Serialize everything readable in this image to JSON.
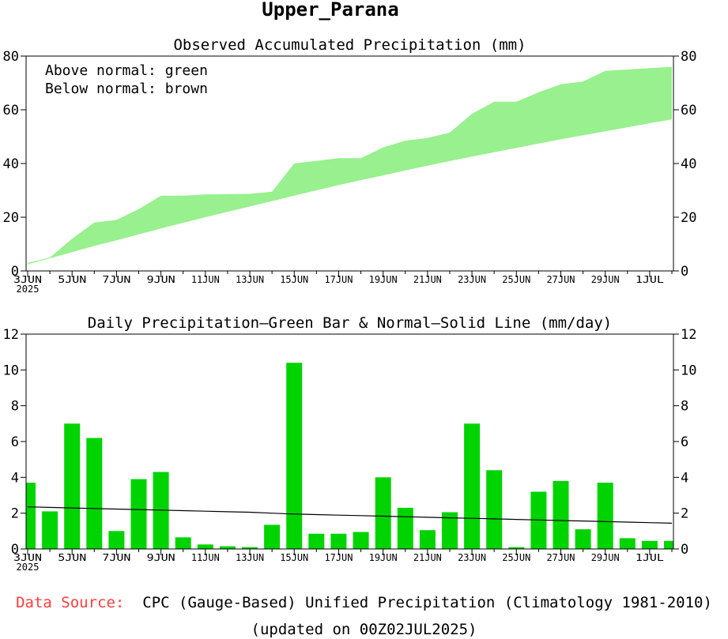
{
  "page_title": "Upper_Parana",
  "chart_data": [
    {
      "type": "area",
      "title": "Observed Accumulated Precipitation (mm)",
      "legend": [
        "Above normal: green",
        "Below normal: brown"
      ],
      "x": [
        "3JUN",
        "4JUN",
        "5JUN",
        "6JUN",
        "7JUN",
        "8JUN",
        "9JUN",
        "10JUN",
        "11JUN",
        "12JUN",
        "13JUN",
        "14JUN",
        "15JUN",
        "16JUN",
        "17JUN",
        "18JUN",
        "19JUN",
        "20JUN",
        "21JUN",
        "22JUN",
        "23JUN",
        "24JUN",
        "25JUN",
        "26JUN",
        "27JUN",
        "28JUN",
        "29JUN",
        "30JUN",
        "1JUL",
        "2JUL"
      ],
      "xtick_labels": [
        "3JUN",
        "5JUN",
        "7JUN",
        "9JUN",
        "11JUN",
        "13JUN",
        "15JUN",
        "17JUN",
        "19JUN",
        "21JUN",
        "23JUN",
        "25JUN",
        "27JUN",
        "29JUN",
        "1JUL"
      ],
      "year_label": "2025",
      "series": [
        {
          "name": "Observed",
          "values": [
            3,
            5,
            12,
            18,
            19,
            23,
            28,
            28,
            28.5,
            28.6,
            28.7,
            29.5,
            40,
            41,
            42,
            42,
            46,
            48.5,
            49.5,
            51.5,
            58.5,
            63,
            63,
            66.5,
            69.5,
            70.5,
            74.5,
            75,
            75.5,
            76
          ]
        },
        {
          "name": "Normal",
          "values": [
            2.5,
            4.7,
            7,
            9.3,
            11.4,
            13.6,
            15.8,
            17.9,
            20,
            22,
            24,
            26,
            28,
            30,
            32,
            33.8,
            35.6,
            37.4,
            39.2,
            40.9,
            42.6,
            44.2,
            45.8,
            47.4,
            49,
            50.5,
            52,
            53.5,
            55,
            56.4
          ]
        }
      ],
      "ylim": [
        0,
        80
      ],
      "yticks": [
        0,
        20,
        40,
        60,
        80
      ],
      "colors": {
        "above": "#98f08e",
        "below": "#c8a165"
      }
    },
    {
      "type": "bar",
      "title": "Daily Precipitation—Green Bar & Normal—Solid Line (mm/day)",
      "x": [
        "3JUN",
        "4JUN",
        "5JUN",
        "6JUN",
        "7JUN",
        "8JUN",
        "9JUN",
        "10JUN",
        "11JUN",
        "12JUN",
        "13JUN",
        "14JUN",
        "15JUN",
        "16JUN",
        "17JUN",
        "18JUN",
        "19JUN",
        "20JUN",
        "21JUN",
        "22JUN",
        "23JUN",
        "24JUN",
        "25JUN",
        "26JUN",
        "27JUN",
        "28JUN",
        "29JUN",
        "30JUN",
        "1JUL",
        "2JUL"
      ],
      "xtick_labels": [
        "3JUN",
        "5JUN",
        "7JUN",
        "9JUN",
        "11JUN",
        "13JUN",
        "15JUN",
        "17JUN",
        "19JUN",
        "21JUN",
        "23JUN",
        "25JUN",
        "27JUN",
        "29JUN",
        "1JUL"
      ],
      "year_label": "2025",
      "series": [
        {
          "name": "Daily Precipitation",
          "values": [
            3.7,
            2.1,
            7.0,
            6.2,
            1.0,
            3.9,
            4.3,
            0.65,
            0.25,
            0.15,
            0.1,
            1.35,
            10.4,
            0.85,
            0.85,
            0.95,
            4.0,
            2.3,
            1.05,
            2.05,
            7.0,
            4.4,
            0.1,
            3.2,
            3.8,
            1.1,
            3.7,
            0.6,
            0.45,
            0.45
          ]
        },
        {
          "name": "Normal",
          "values": [
            2.35,
            2.32,
            2.29,
            2.26,
            2.23,
            2.2,
            2.17,
            2.14,
            2.11,
            2.08,
            2.05,
            2.0,
            1.95,
            1.92,
            1.89,
            1.86,
            1.83,
            1.8,
            1.77,
            1.74,
            1.71,
            1.68,
            1.65,
            1.62,
            1.59,
            1.56,
            1.53,
            1.5,
            1.47,
            1.44
          ]
        }
      ],
      "ylim": [
        0,
        12
      ],
      "yticks": [
        0,
        2,
        4,
        6,
        8,
        10,
        12
      ],
      "colors": {
        "bar": "#00d400",
        "line": "#000000"
      }
    }
  ],
  "footer": {
    "source_label": "Data Source:",
    "source_text": "CPC (Gauge-Based) Unified Precipitation (Climatology 1981-2010)",
    "updated": "(updated on 00Z02JUL2025)"
  }
}
